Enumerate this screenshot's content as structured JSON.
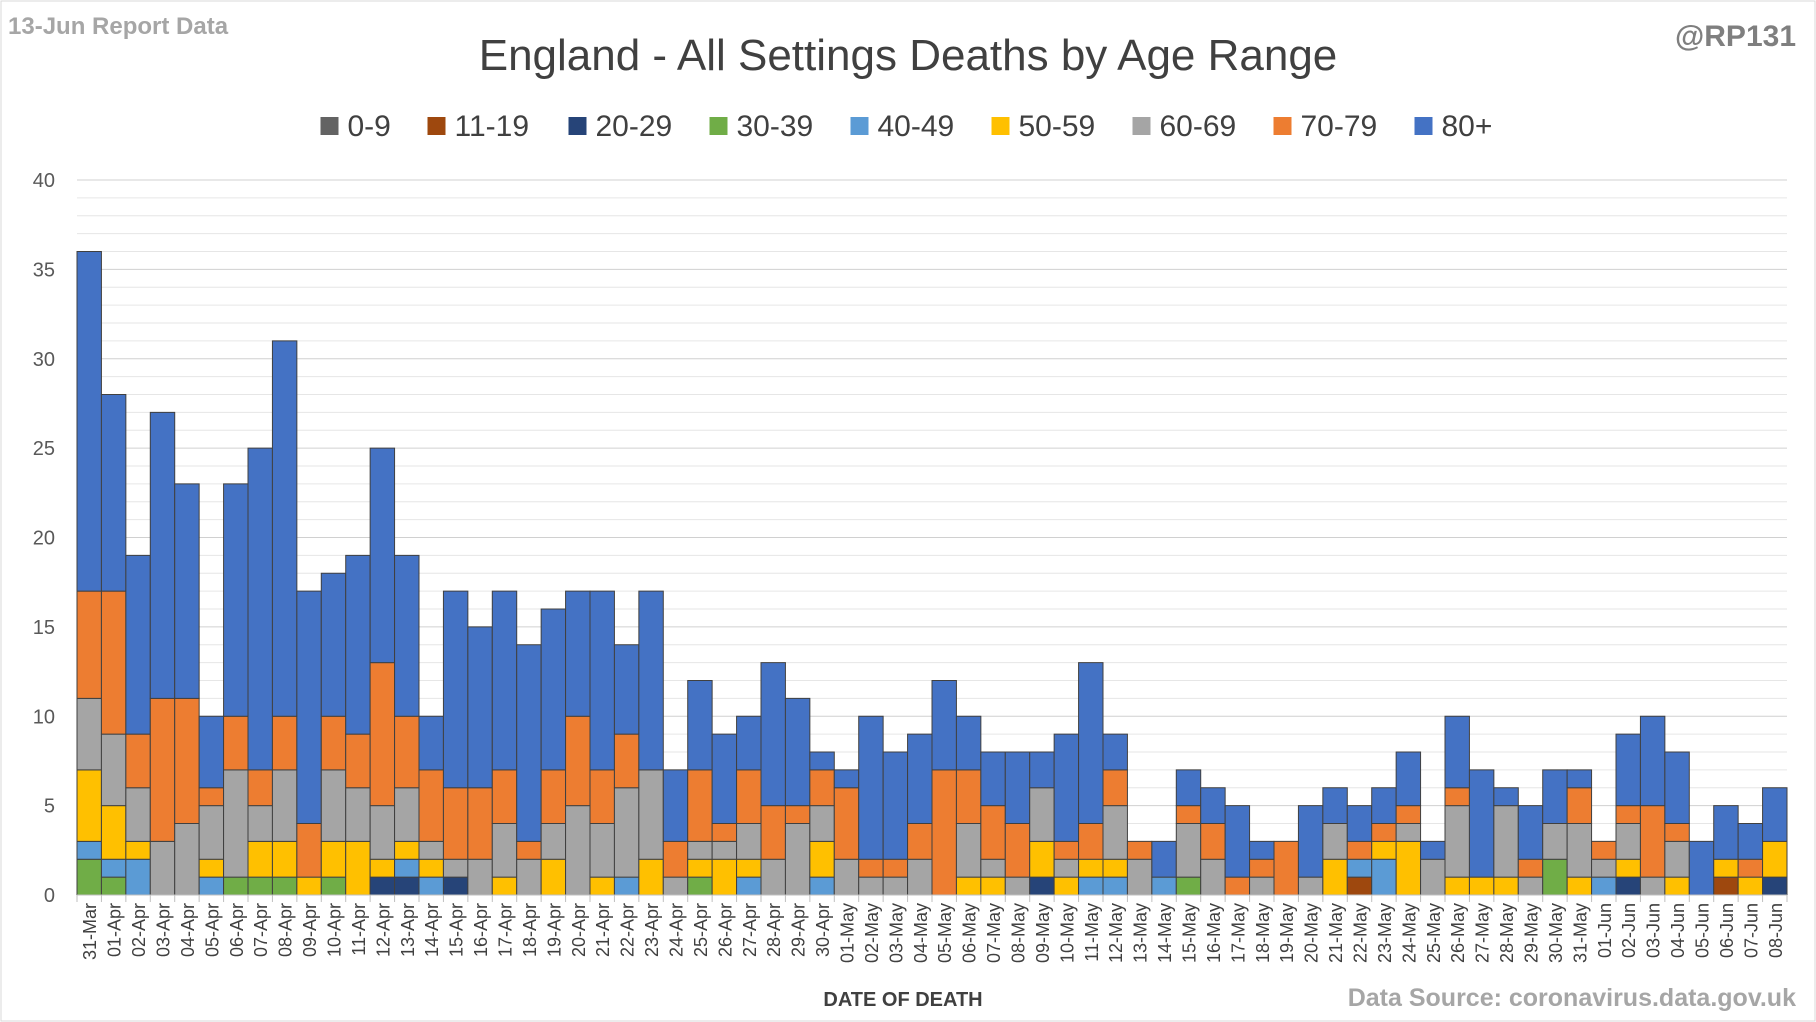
{
  "report_label": "13-Jun Report Data",
  "handle": "@RP131",
  "source": "Data Source: coronavirus.data.gov.uk",
  "chart_data": {
    "type": "bar",
    "stacked": true,
    "title": "England - All Settings Deaths by Age Range",
    "xlabel": "DATE OF DEATH",
    "ylabel": "",
    "ylim": [
      0,
      40
    ],
    "yticks": [
      0,
      5,
      10,
      15,
      20,
      25,
      30,
      35,
      40
    ],
    "grid": true,
    "legend_position": "top",
    "categories": [
      "31-Mar",
      "01-Apr",
      "02-Apr",
      "03-Apr",
      "04-Apr",
      "05-Apr",
      "06-Apr",
      "07-Apr",
      "08-Apr",
      "09-Apr",
      "10-Apr",
      "11-Apr",
      "12-Apr",
      "13-Apr",
      "14-Apr",
      "15-Apr",
      "16-Apr",
      "17-Apr",
      "18-Apr",
      "19-Apr",
      "20-Apr",
      "21-Apr",
      "22-Apr",
      "23-Apr",
      "24-Apr",
      "25-Apr",
      "26-Apr",
      "27-Apr",
      "28-Apr",
      "29-Apr",
      "30-Apr",
      "01-May",
      "02-May",
      "03-May",
      "04-May",
      "05-May",
      "06-May",
      "07-May",
      "08-May",
      "09-May",
      "10-May",
      "11-May",
      "12-May",
      "13-May",
      "14-May",
      "15-May",
      "16-May",
      "17-May",
      "18-May",
      "19-May",
      "20-May",
      "21-May",
      "22-May",
      "23-May",
      "24-May",
      "25-May",
      "26-May",
      "27-May",
      "28-May",
      "29-May",
      "30-May",
      "31-May",
      "01-Jun",
      "02-Jun",
      "03-Jun",
      "04-Jun",
      "05-Jun",
      "06-Jun",
      "07-Jun",
      "08-Jun"
    ],
    "series": [
      {
        "name": "0-9",
        "color": "#636363",
        "values": [
          0,
          0,
          0,
          0,
          0,
          0,
          0,
          0,
          0,
          0,
          0,
          0,
          0,
          0,
          0,
          0,
          0,
          0,
          0,
          0,
          0,
          0,
          0,
          0,
          0,
          0,
          0,
          0,
          0,
          0,
          0,
          0,
          0,
          0,
          0,
          0,
          0,
          0,
          0,
          0,
          0,
          0,
          0,
          0,
          0,
          0,
          0,
          0,
          0,
          0,
          0,
          0,
          0,
          0,
          0,
          0,
          0,
          0,
          0,
          0,
          0,
          0,
          0,
          0,
          0,
          0,
          0,
          0,
          0,
          0
        ]
      },
      {
        "name": "11-19",
        "color": "#9E480E",
        "values": [
          0,
          0,
          0,
          0,
          0,
          0,
          0,
          0,
          0,
          0,
          0,
          0,
          0,
          0,
          0,
          0,
          0,
          0,
          0,
          0,
          0,
          0,
          0,
          0,
          0,
          0,
          0,
          0,
          0,
          0,
          0,
          0,
          0,
          0,
          0,
          0,
          0,
          0,
          0,
          0,
          0,
          0,
          0,
          0,
          0,
          0,
          0,
          0,
          0,
          0,
          0,
          0,
          1,
          0,
          0,
          0,
          0,
          0,
          0,
          0,
          0,
          0,
          0,
          0,
          0,
          0,
          0,
          1,
          0,
          0
        ]
      },
      {
        "name": "20-29",
        "color": "#264478",
        "values": [
          0,
          0,
          0,
          0,
          0,
          0,
          0,
          0,
          0,
          0,
          0,
          0,
          1,
          1,
          0,
          1,
          0,
          0,
          0,
          0,
          0,
          0,
          0,
          0,
          0,
          0,
          0,
          0,
          0,
          0,
          0,
          0,
          0,
          0,
          0,
          0,
          0,
          0,
          0,
          1,
          0,
          0,
          0,
          0,
          0,
          0,
          0,
          0,
          0,
          0,
          0,
          0,
          0,
          0,
          0,
          0,
          0,
          0,
          0,
          0,
          0,
          0,
          0,
          1,
          0,
          0,
          0,
          0,
          0,
          1
        ]
      },
      {
        "name": "30-39",
        "color": "#70AD47",
        "values": [
          2,
          1,
          0,
          0,
          0,
          0,
          1,
          1,
          1,
          0,
          1,
          0,
          0,
          0,
          0,
          0,
          0,
          0,
          0,
          0,
          0,
          0,
          0,
          0,
          0,
          1,
          0,
          0,
          0,
          0,
          0,
          0,
          0,
          0,
          0,
          0,
          0,
          0,
          0,
          0,
          0,
          0,
          0,
          0,
          0,
          1,
          0,
          0,
          0,
          0,
          0,
          0,
          0,
          0,
          0,
          0,
          0,
          0,
          0,
          0,
          2,
          0,
          0,
          0,
          0,
          0,
          0,
          0,
          0,
          0
        ]
      },
      {
        "name": "40-49",
        "color": "#5B9BD5",
        "values": [
          1,
          1,
          2,
          0,
          0,
          1,
          0,
          0,
          0,
          0,
          0,
          0,
          0,
          1,
          1,
          0,
          0,
          0,
          0,
          0,
          0,
          0,
          1,
          0,
          0,
          0,
          0,
          1,
          0,
          0,
          1,
          0,
          0,
          0,
          0,
          0,
          0,
          0,
          0,
          0,
          0,
          1,
          1,
          0,
          1,
          0,
          0,
          0,
          0,
          0,
          0,
          0,
          1,
          2,
          0,
          0,
          0,
          0,
          0,
          0,
          0,
          0,
          1,
          0,
          0,
          0,
          0,
          0,
          0,
          0
        ]
      },
      {
        "name": "50-59",
        "color": "#FFC000",
        "values": [
          4,
          3,
          1,
          0,
          0,
          1,
          0,
          2,
          2,
          1,
          2,
          3,
          1,
          1,
          1,
          0,
          0,
          1,
          0,
          2,
          0,
          1,
          0,
          2,
          0,
          1,
          2,
          1,
          0,
          0,
          2,
          0,
          0,
          0,
          0,
          0,
          1,
          1,
          0,
          2,
          1,
          1,
          1,
          0,
          0,
          0,
          0,
          0,
          0,
          0,
          0,
          2,
          0,
          1,
          3,
          0,
          1,
          1,
          1,
          0,
          0,
          1,
          0,
          1,
          0,
          1,
          0,
          1,
          1,
          2
        ]
      },
      {
        "name": "60-69",
        "color": "#A5A5A5",
        "values": [
          4,
          4,
          3,
          3,
          4,
          3,
          6,
          2,
          4,
          0,
          4,
          3,
          3,
          3,
          1,
          1,
          2,
          3,
          2,
          2,
          5,
          3,
          5,
          5,
          1,
          1,
          1,
          2,
          2,
          4,
          2,
          2,
          1,
          1,
          2,
          0,
          3,
          1,
          1,
          3,
          1,
          0,
          3,
          2,
          0,
          3,
          2,
          0,
          1,
          0,
          1,
          2,
          0,
          0,
          1,
          2,
          4,
          0,
          4,
          1,
          2,
          3,
          1,
          2,
          1,
          2,
          0,
          0,
          0,
          0
        ]
      },
      {
        "name": "70-79",
        "color": "#ED7D31",
        "values": [
          6,
          8,
          3,
          8,
          7,
          1,
          3,
          2,
          3,
          3,
          3,
          3,
          8,
          4,
          4,
          4,
          4,
          3,
          1,
          3,
          5,
          3,
          3,
          0,
          2,
          4,
          1,
          3,
          3,
          1,
          2,
          4,
          1,
          1,
          2,
          7,
          3,
          3,
          3,
          0,
          1,
          2,
          2,
          1,
          0,
          1,
          2,
          1,
          1,
          3,
          0,
          0,
          1,
          1,
          1,
          0,
          1,
          0,
          0,
          1,
          0,
          2,
          1,
          1,
          4,
          1,
          0,
          0,
          1,
          0
        ]
      },
      {
        "name": "80+",
        "color": "#4472C4",
        "values": [
          19,
          11,
          10,
          16,
          12,
          4,
          13,
          18,
          21,
          13,
          8,
          10,
          12,
          9,
          3,
          11,
          9,
          10,
          11,
          9,
          7,
          10,
          5,
          10,
          4,
          5,
          5,
          3,
          8,
          6,
          1,
          1,
          8,
          6,
          5,
          5,
          3,
          3,
          4,
          2,
          6,
          9,
          2,
          0,
          2,
          2,
          2,
          4,
          1,
          0,
          4,
          2,
          2,
          2,
          3,
          1,
          4,
          6,
          1,
          3,
          3,
          1,
          0,
          4,
          5,
          4,
          3,
          3,
          2,
          3
        ]
      }
    ]
  }
}
